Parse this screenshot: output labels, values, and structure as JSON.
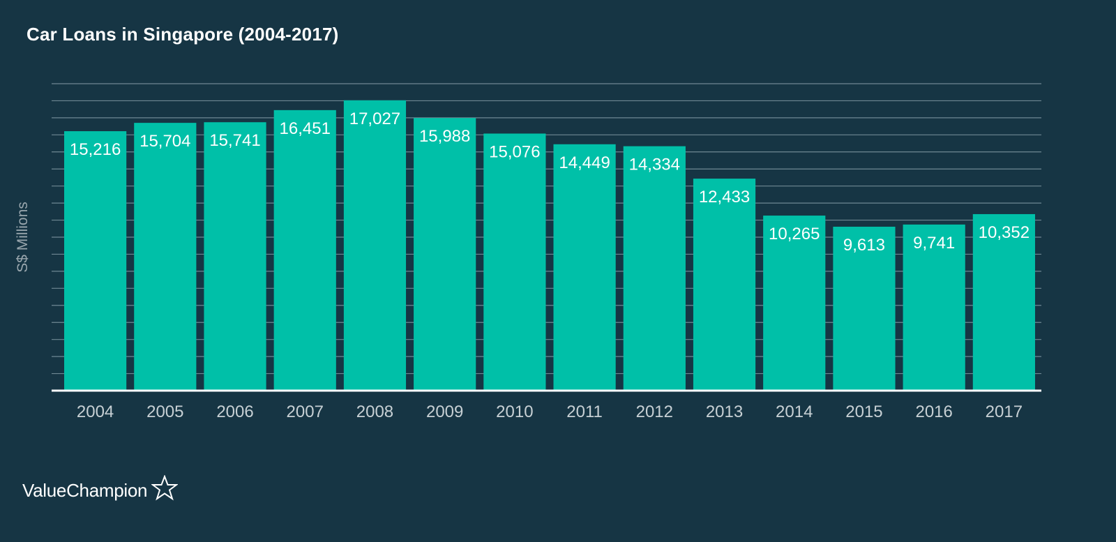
{
  "chart_data": {
    "type": "bar",
    "title": "Car Loans in Singapore (2004-2017)",
    "ylabel": "S$ Millions",
    "xlabel": "",
    "categories": [
      "2004",
      "2005",
      "2006",
      "2007",
      "2008",
      "2009",
      "2010",
      "2011",
      "2012",
      "2013",
      "2014",
      "2015",
      "2016",
      "2017"
    ],
    "values": [
      15216,
      15704,
      15741,
      16451,
      17027,
      15988,
      15076,
      14449,
      14334,
      12433,
      10265,
      9613,
      9741,
      10352
    ],
    "value_labels": [
      "15,216",
      "15,704",
      "15,741",
      "16,451",
      "17,027",
      "15,988",
      "15,076",
      "14,449",
      "14,334",
      "12,433",
      "10,265",
      "9,613",
      "9,741",
      "10,352"
    ],
    "ylim": [
      0,
      18000
    ],
    "grid": true,
    "legend": "none",
    "colors": {
      "bar": "#00c0a8",
      "background": "#163544",
      "grid": "#6f8893",
      "axis": "#ffffff"
    }
  },
  "brand": {
    "name": "ValueChampion",
    "icon": "star-outline-icon"
  }
}
